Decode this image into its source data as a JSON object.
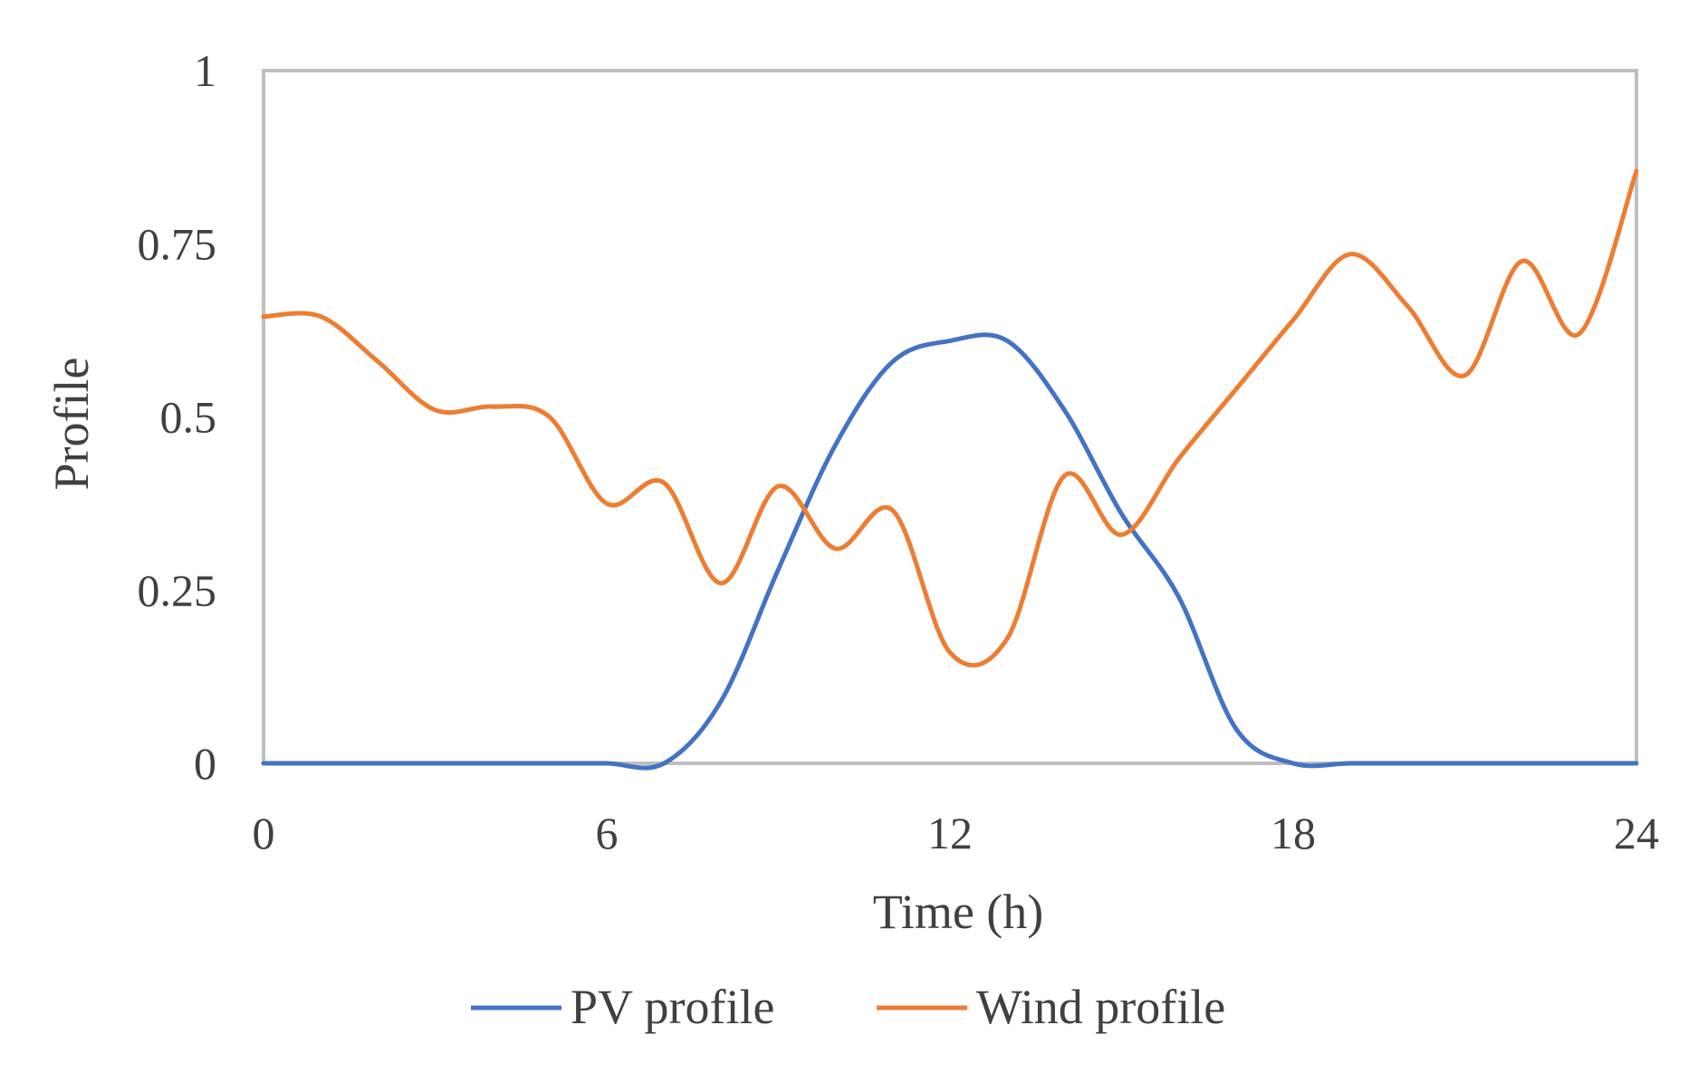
{
  "chart_data": {
    "type": "line",
    "title": "",
    "xlabel": "Time (h)",
    "ylabel": "Profile",
    "xlim": [
      0,
      24
    ],
    "ylim": [
      0,
      1
    ],
    "x_ticks": [
      0,
      6,
      12,
      18,
      24
    ],
    "y_ticks": [
      0,
      0.25,
      0.5,
      0.75,
      1
    ],
    "x_tick_labels": [
      "0",
      "6",
      "12",
      "18",
      "24"
    ],
    "y_tick_labels": [
      "0",
      "0.25",
      "0.5",
      "0.75",
      "1"
    ],
    "grid": false,
    "legend_position": "bottom",
    "series": [
      {
        "name": "PV profile",
        "color": "#4472C4",
        "x": [
          0,
          1,
          2,
          3,
          4,
          5,
          6,
          7,
          8,
          9,
          10,
          11,
          12,
          13,
          14,
          15,
          16,
          17,
          18,
          19,
          20,
          21,
          22,
          23,
          24
        ],
        "y": [
          0,
          0,
          0,
          0,
          0,
          0,
          0,
          0,
          0.09,
          0.28,
          0.46,
          0.58,
          0.61,
          0.61,
          0.51,
          0.36,
          0.24,
          0.05,
          0,
          0,
          0,
          0,
          0,
          0,
          0
        ]
      },
      {
        "name": "Wind profile",
        "color": "#ED7D31",
        "x": [
          0,
          1,
          2,
          3,
          4,
          5,
          6,
          7,
          8,
          9,
          10,
          11,
          12,
          13,
          14,
          15,
          16,
          17,
          18,
          19,
          20,
          21,
          22,
          23,
          24
        ],
        "y": [
          0.645,
          0.645,
          0.58,
          0.51,
          0.515,
          0.5,
          0.375,
          0.405,
          0.26,
          0.4,
          0.31,
          0.365,
          0.16,
          0.18,
          0.415,
          0.33,
          0.44,
          0.54,
          0.64,
          0.735,
          0.66,
          0.56,
          0.725,
          0.62,
          0.855
        ]
      }
    ]
  }
}
